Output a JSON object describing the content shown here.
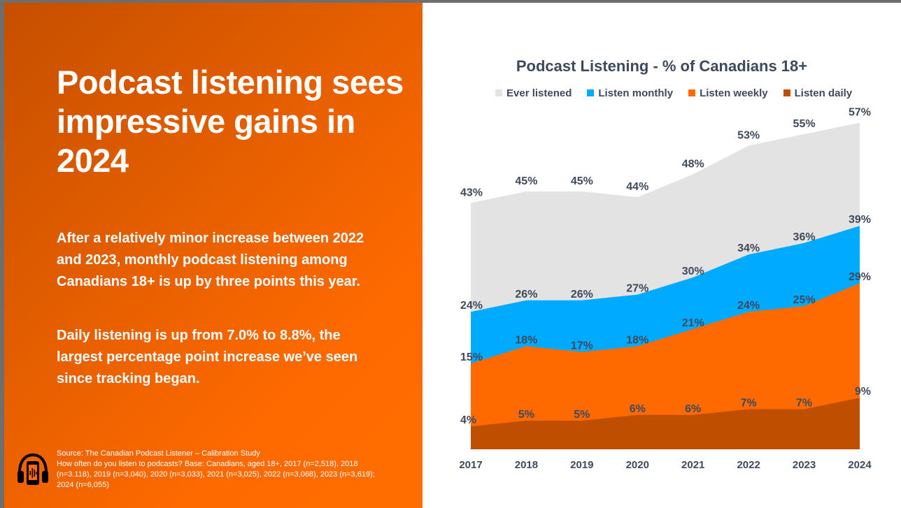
{
  "slide": {
    "headline": "Podcast listening sees impressive gains in 2024",
    "paragraph1": "After a relatively minor increase between 2022 and 2023, monthly podcast listening among Canadians 18+ is up by three points this year.",
    "paragraph2": "Daily listening is up from 7.0% to 8.8%, the largest percentage point increase we’ve seen since tracking began.",
    "source_line1": "Source: The Canadian Podcast Listener – Calibration Study",
    "source_line2": "How often do you listen to podcasts? Base: Canadians, aged 18+, 2017 (n=2,518), 2018 (n=3.118), 2019 (n=3,040), 2020 (n=3,033), 2021 (n=3,025), 2022 (n=3,068), 2023 (n=3,619); 2024 (n=6,055)",
    "icon": "headphones-phone-icon"
  },
  "chart_data": {
    "type": "area",
    "title": "Podcast Listening - % of Canadians 18+",
    "x": [
      "2017",
      "2018",
      "2019",
      "2020",
      "2021",
      "2022",
      "2023",
      "2024"
    ],
    "ylim": [
      0,
      60
    ],
    "grid": false,
    "legend_position": "top",
    "series": [
      {
        "name": "Ever listened",
        "color": "#e3e3e3",
        "values": [
          43,
          45,
          45,
          44,
          48,
          53,
          55,
          57
        ],
        "labels": [
          "43%",
          "45%",
          "45%",
          "44%",
          "48%",
          "53%",
          "55%",
          "57%"
        ]
      },
      {
        "name": "Listen monthly",
        "color": "#00aaff",
        "values": [
          24,
          26,
          26,
          27,
          30,
          34,
          36,
          39
        ],
        "labels": [
          "24%",
          "26%",
          "26%",
          "27%",
          "30%",
          "34%",
          "36%",
          "39%"
        ]
      },
      {
        "name": "Listen weekly",
        "color": "#ff6a00",
        "values": [
          15,
          18,
          17,
          18,
          21,
          24,
          25,
          29
        ],
        "labels": [
          "15%",
          "18%",
          "17%",
          "18%",
          "21%",
          "24%",
          "25%",
          "29%"
        ]
      },
      {
        "name": "Listen daily",
        "color": "#c04e00",
        "values": [
          4,
          5,
          5,
          6,
          6,
          7,
          7,
          9
        ],
        "labels": [
          "4%",
          "5%",
          "5%",
          "6%",
          "6%",
          "7%",
          "7%",
          "9%"
        ]
      }
    ]
  }
}
